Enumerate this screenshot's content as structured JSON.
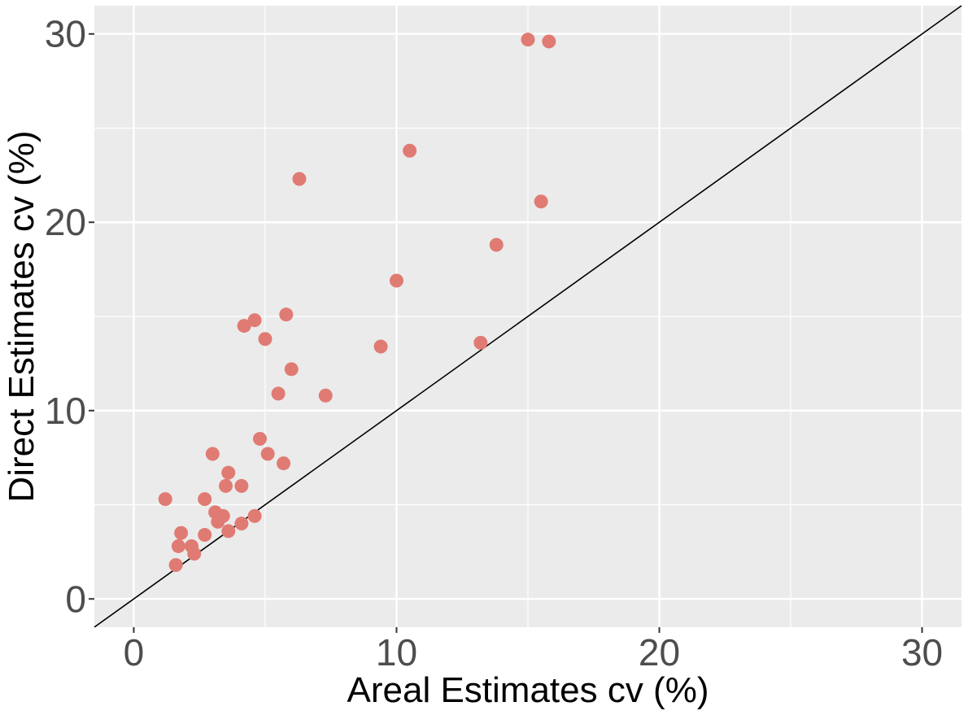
{
  "chart_data": {
    "type": "scatter",
    "title": "",
    "xlabel": "Areal Estimates  cv (%)",
    "ylabel": "Direct Estimates  cv (%)",
    "xlim": [
      -1.5,
      31.5
    ],
    "ylim": [
      -1.5,
      31.5
    ],
    "xticks": [
      0,
      10,
      20,
      30
    ],
    "yticks": [
      0,
      10,
      20,
      30
    ],
    "xtick_labels": [
      "0",
      "10",
      "20",
      "30"
    ],
    "ytick_labels": [
      "0",
      "10",
      "20",
      "30"
    ],
    "grid": true,
    "reference_line": {
      "slope": 1,
      "intercept": 0,
      "label": "y = x"
    },
    "colors": {
      "panel": "#ebebeb",
      "grid": "#ffffff",
      "point": "#e07b74",
      "line": "#000000"
    },
    "points": [
      {
        "x": 15.0,
        "y": 29.7
      },
      {
        "x": 15.8,
        "y": 29.6
      },
      {
        "x": 10.5,
        "y": 23.8
      },
      {
        "x": 6.3,
        "y": 22.3
      },
      {
        "x": 15.5,
        "y": 21.1
      },
      {
        "x": 13.8,
        "y": 18.8
      },
      {
        "x": 10.0,
        "y": 16.9
      },
      {
        "x": 5.8,
        "y": 15.1
      },
      {
        "x": 4.6,
        "y": 14.8
      },
      {
        "x": 4.2,
        "y": 14.5
      },
      {
        "x": 5.0,
        "y": 13.8
      },
      {
        "x": 9.4,
        "y": 13.4
      },
      {
        "x": 13.2,
        "y": 13.6
      },
      {
        "x": 6.0,
        "y": 12.2
      },
      {
        "x": 5.5,
        "y": 10.9
      },
      {
        "x": 7.3,
        "y": 10.8
      },
      {
        "x": 4.8,
        "y": 8.5
      },
      {
        "x": 3.0,
        "y": 7.7
      },
      {
        "x": 5.1,
        "y": 7.7
      },
      {
        "x": 5.7,
        "y": 7.2
      },
      {
        "x": 3.6,
        "y": 6.7
      },
      {
        "x": 3.5,
        "y": 6.0
      },
      {
        "x": 4.1,
        "y": 6.0
      },
      {
        "x": 1.2,
        "y": 5.3
      },
      {
        "x": 2.7,
        "y": 5.3
      },
      {
        "x": 3.1,
        "y": 4.6
      },
      {
        "x": 3.4,
        "y": 4.4
      },
      {
        "x": 4.6,
        "y": 4.4
      },
      {
        "x": 3.2,
        "y": 4.1
      },
      {
        "x": 4.1,
        "y": 4.0
      },
      {
        "x": 3.6,
        "y": 3.6
      },
      {
        "x": 1.8,
        "y": 3.5
      },
      {
        "x": 2.7,
        "y": 3.4
      },
      {
        "x": 1.7,
        "y": 2.8
      },
      {
        "x": 2.2,
        "y": 2.8
      },
      {
        "x": 2.3,
        "y": 2.4
      },
      {
        "x": 1.6,
        "y": 1.8
      }
    ]
  }
}
